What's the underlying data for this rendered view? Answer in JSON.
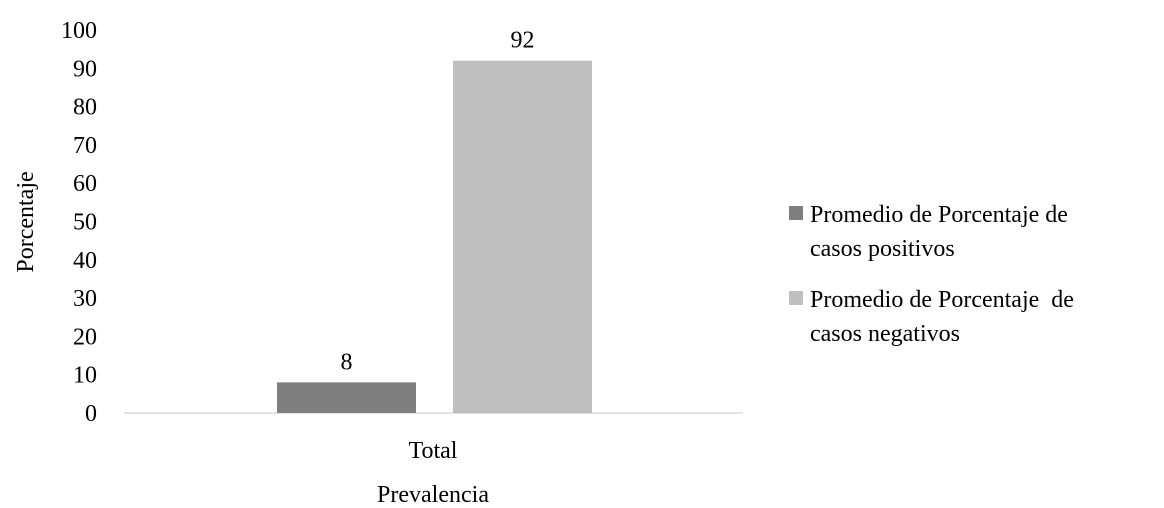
{
  "chart_data": {
    "type": "bar",
    "categories": [
      "Total"
    ],
    "series": [
      {
        "name": "Promedio de Porcentaje de casos positivos",
        "values": [
          8
        ],
        "color": "#7f7f7f"
      },
      {
        "name": "Promedio de Porcentaje  de casos negativos",
        "values": [
          92
        ],
        "color": "#bfbfbf"
      }
    ],
    "data_labels": [
      "8",
      "92"
    ],
    "xlabel": "Prevalencia",
    "ylabel": "Porcentaje",
    "ylim": [
      0,
      100
    ],
    "yticks": [
      "0",
      "10",
      "20",
      "30",
      "40",
      "50",
      "60",
      "70",
      "80",
      "90",
      "100"
    ],
    "legend": {
      "position": "right",
      "entries": [
        {
          "line1": "Promedio de Porcentaje de",
          "line2": "casos positivos"
        },
        {
          "line1": "Promedio de Porcentaje  de",
          "line2": "casos negativos"
        }
      ]
    },
    "grid": false
  }
}
